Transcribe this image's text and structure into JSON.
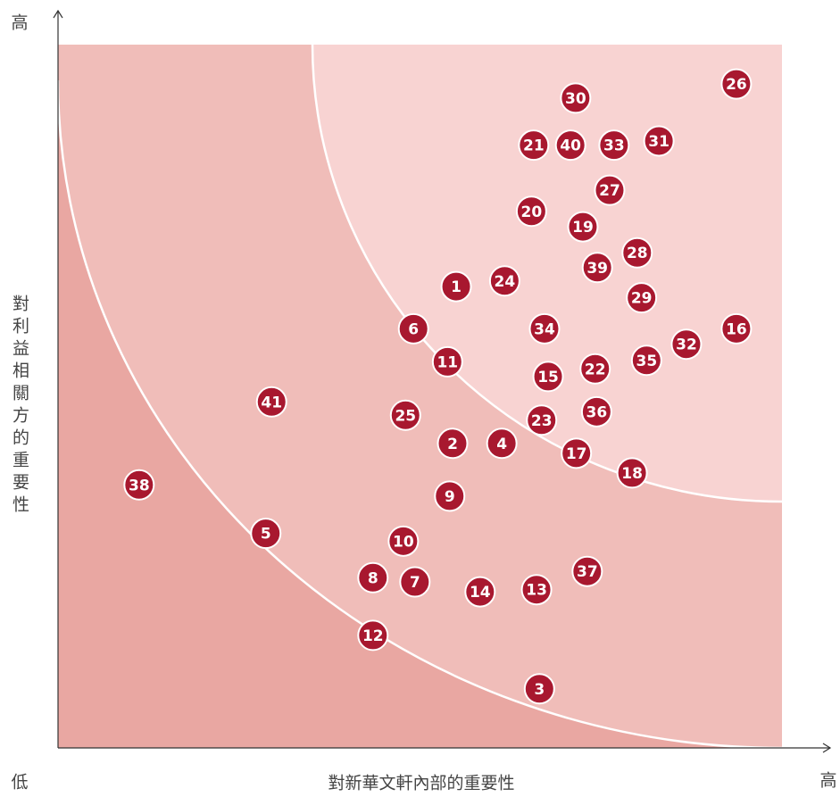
{
  "chart_data": {
    "type": "scatter",
    "x_label": "對新華文軒內部的重要性",
    "y_label": "對利益相關方的重要性",
    "y_high_label": "高",
    "origin_label": "低",
    "x_high_label": "高",
    "xlim": [
      0,
      100
    ],
    "ylim": [
      0,
      100
    ],
    "color": "#a8182f",
    "labels": [
      "1",
      "2",
      "3",
      "4",
      "5",
      "6",
      "7",
      "8",
      "9",
      "10",
      "11",
      "12",
      "13",
      "14",
      "15",
      "16",
      "17",
      "18",
      "19",
      "20",
      "21",
      "22",
      "23",
      "24",
      "25",
      "26",
      "27",
      "28",
      "29",
      "30",
      "31",
      "32",
      "33",
      "34",
      "35",
      "36",
      "37",
      "38",
      "39",
      "40",
      "41"
    ],
    "x": [
      55.0,
      54.5,
      66.5,
      61.3,
      28.7,
      49.1,
      49.3,
      43.5,
      54.1,
      47.7,
      53.8,
      43.5,
      66.1,
      58.3,
      67.7,
      93.7,
      71.6,
      79.3,
      72.5,
      65.4,
      65.7,
      74.2,
      66.8,
      61.7,
      48.0,
      93.7,
      76.2,
      80.0,
      80.6,
      71.5,
      83.0,
      86.8,
      76.8,
      67.2,
      81.3,
      74.4,
      73.1,
      11.2,
      74.5,
      70.8,
      29.5
    ],
    "values": [
      65.6,
      43.3,
      8.4,
      43.3,
      30.5,
      59.6,
      23.6,
      24.2,
      35.8,
      29.4,
      54.9,
      16.0,
      22.5,
      22.2,
      52.8,
      59.6,
      41.9,
      39.1,
      74.1,
      76.3,
      85.7,
      53.9,
      46.6,
      66.4,
      47.3,
      94.4,
      79.3,
      70.4,
      64.0,
      92.4,
      86.3,
      57.4,
      85.7,
      59.6,
      55.1,
      47.8,
      25.1,
      37.4,
      68.3,
      85.7,
      49.2
    ]
  }
}
